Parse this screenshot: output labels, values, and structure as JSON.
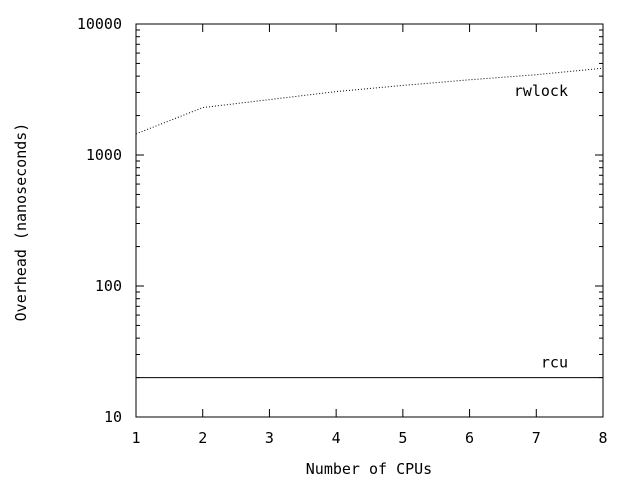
{
  "chart_data": {
    "type": "line",
    "title": "",
    "xlabel": "Number of CPUs",
    "ylabel": "Overhead (nanoseconds)",
    "xlim": [
      1,
      8
    ],
    "ylim": [
      10,
      10000
    ],
    "yscale": "log",
    "grid": false,
    "legend": "inline",
    "x_ticks": [
      1,
      2,
      3,
      4,
      5,
      6,
      7,
      8
    ],
    "x_tick_labels": [
      "1",
      "2",
      "3",
      "4",
      "5",
      "6",
      "7",
      "8"
    ],
    "y_ticks": [
      10,
      100,
      1000,
      10000
    ],
    "y_tick_labels": [
      "10",
      "100",
      "1000",
      "10000"
    ],
    "series": [
      {
        "name": "rwlock",
        "style": "dotted",
        "x": [
          1,
          2,
          3,
          4,
          5,
          6,
          7,
          8
        ],
        "y": [
          1450,
          2300,
          2650,
          3050,
          3400,
          3750,
          4100,
          4600
        ]
      },
      {
        "name": "rcu",
        "style": "solid",
        "x": [
          1,
          2,
          3,
          4,
          5,
          6,
          7,
          8
        ],
        "y": [
          20,
          20,
          20,
          20,
          20,
          20,
          20,
          20
        ]
      }
    ]
  }
}
